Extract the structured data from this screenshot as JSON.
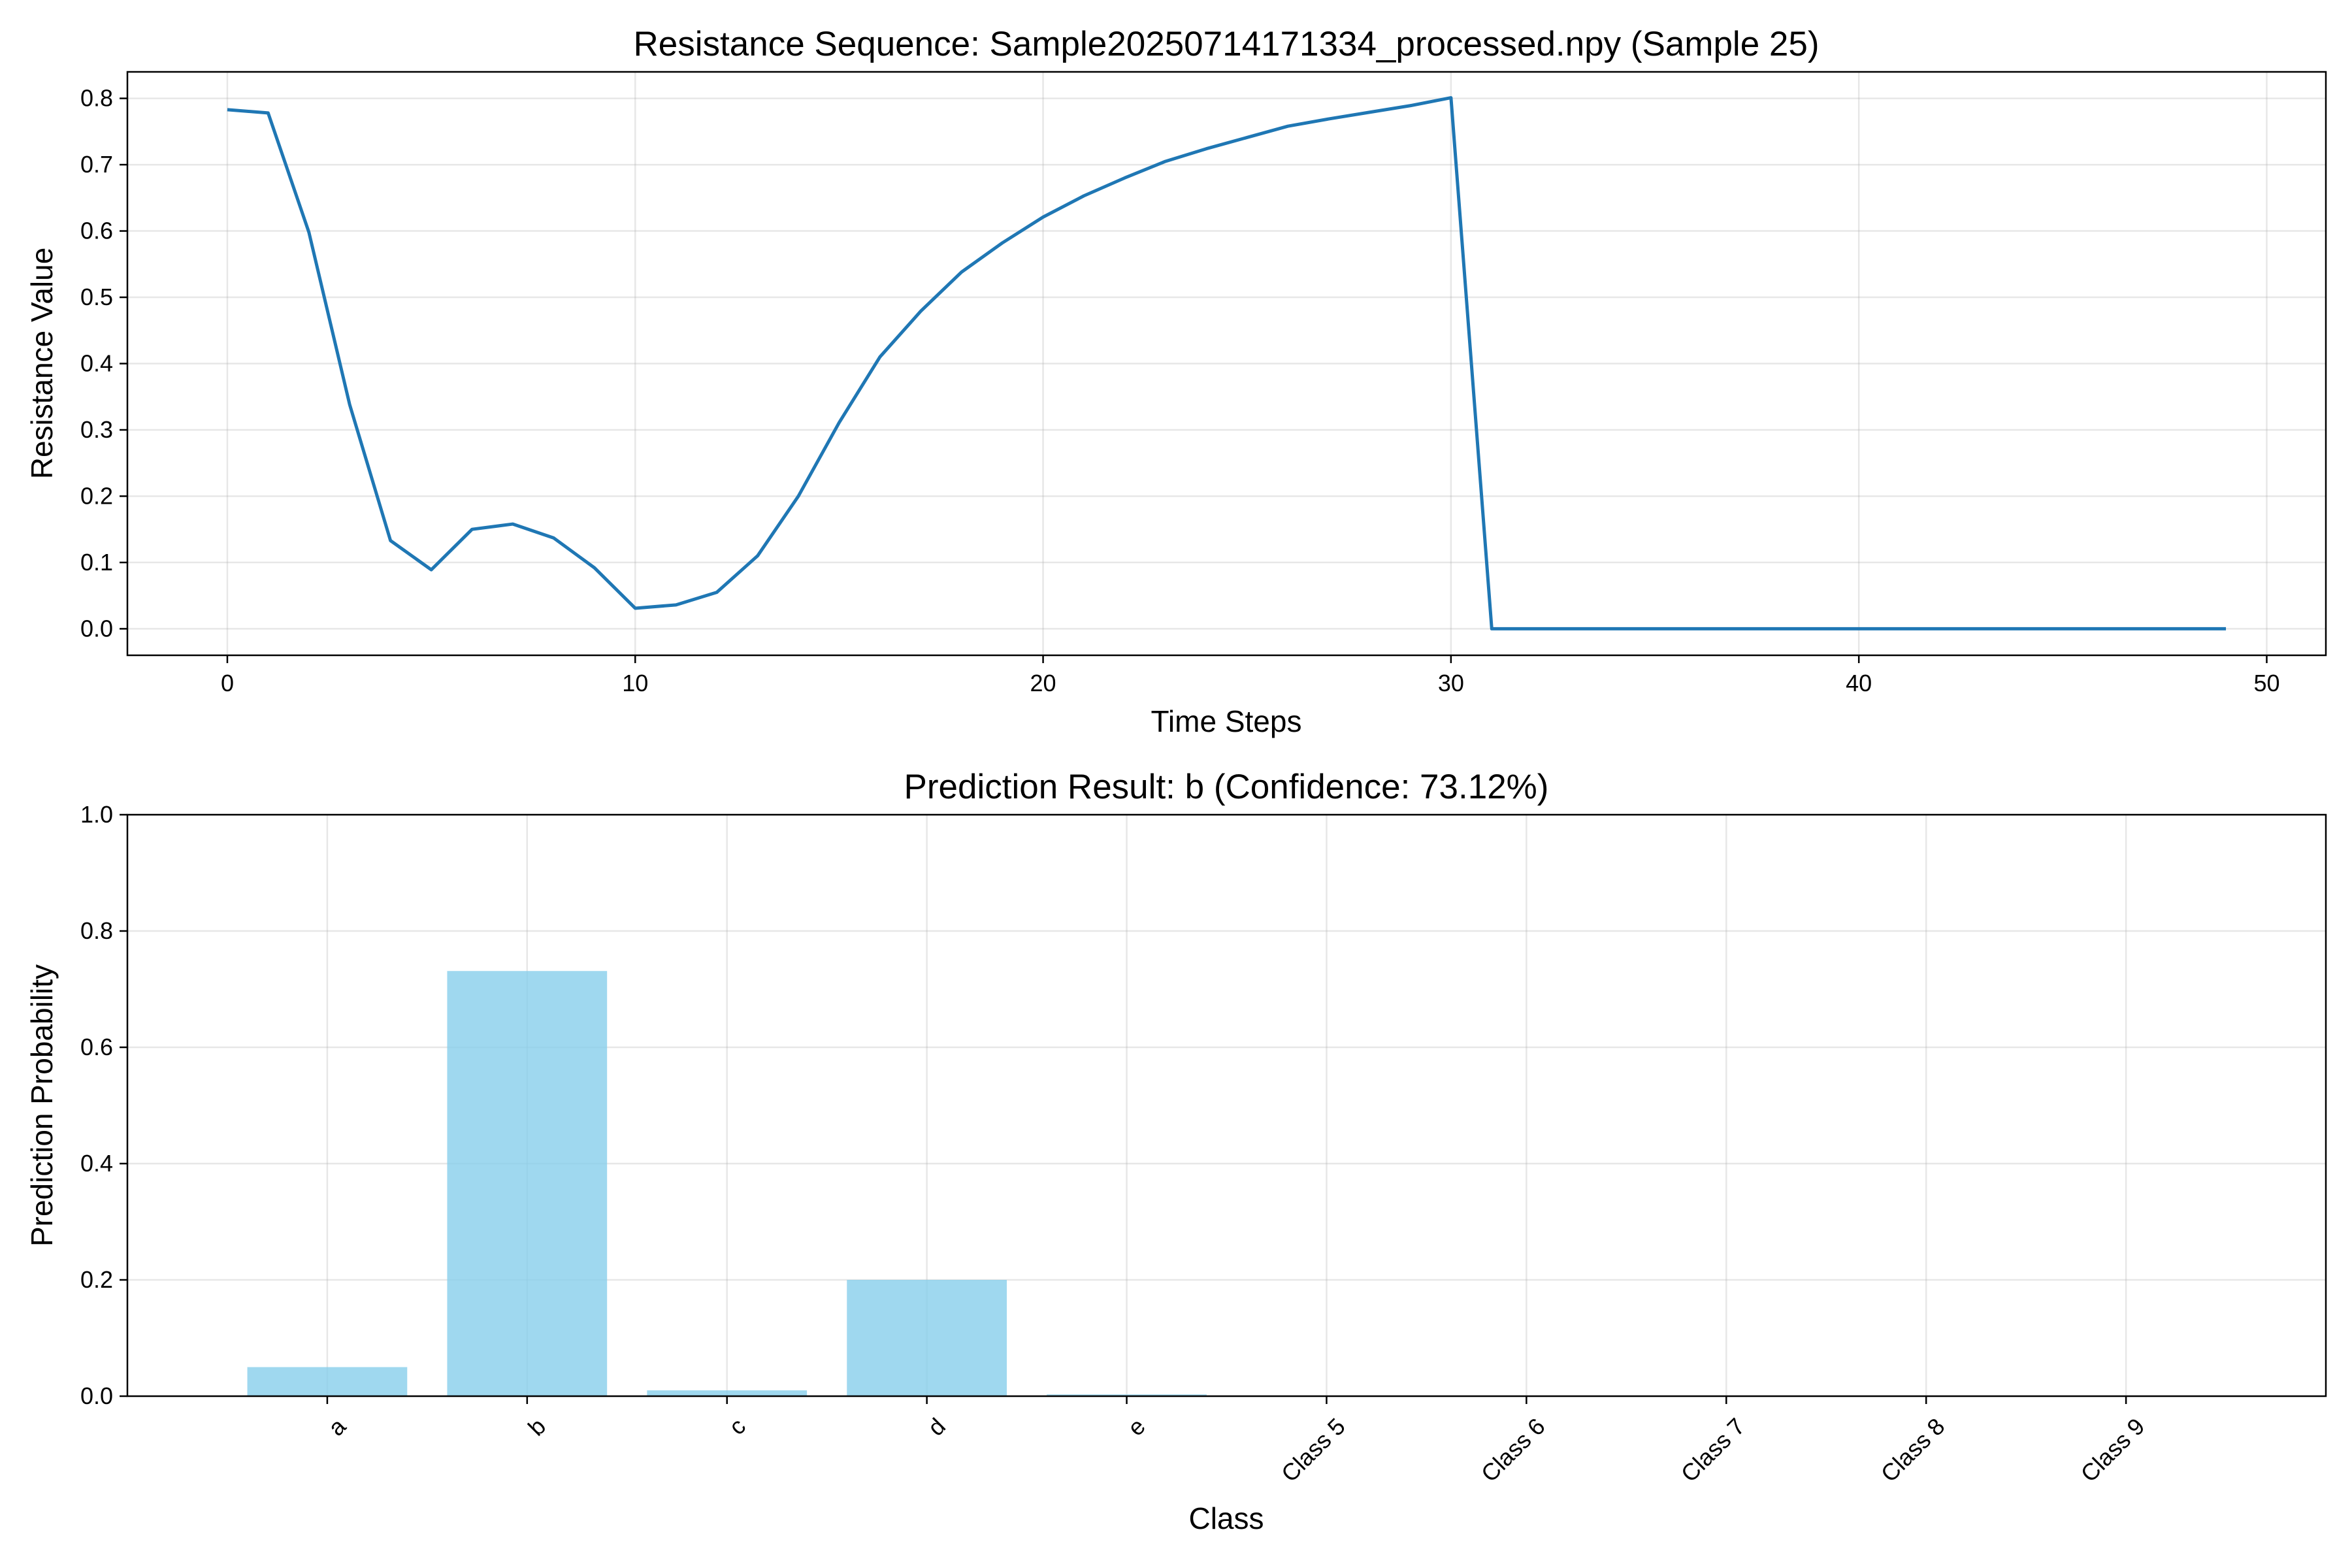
{
  "chart_data": [
    {
      "type": "line",
      "title": "Resistance Sequence: Sample20250714171334_processed.npy (Sample 25)",
      "xlabel": "Time Steps",
      "ylabel": "Resistance Value",
      "xlim": [
        -2.45,
        51.45
      ],
      "ylim": [
        -0.04,
        0.84
      ],
      "xticks": [
        0,
        10,
        20,
        30,
        40,
        50
      ],
      "xtick_labels": [
        "0",
        "10",
        "20",
        "30",
        "40",
        "50"
      ],
      "yticks": [
        0.0,
        0.1,
        0.2,
        0.3,
        0.4,
        0.5,
        0.6,
        0.7,
        0.8
      ],
      "ytick_labels": [
        "0.0",
        "0.1",
        "0.2",
        "0.3",
        "0.4",
        "0.5",
        "0.6",
        "0.7",
        "0.8"
      ],
      "grid": true,
      "color": "#1f77b4",
      "x": [
        0,
        1,
        2,
        3,
        4,
        5,
        6,
        7,
        8,
        9,
        10,
        11,
        12,
        13,
        14,
        15,
        16,
        17,
        18,
        19,
        20,
        21,
        22,
        23,
        24,
        25,
        26,
        27,
        28,
        29,
        30,
        31,
        32,
        33,
        34,
        35,
        36,
        37,
        38,
        39,
        40,
        41,
        42,
        43,
        44,
        45,
        46,
        47,
        48,
        49
      ],
      "y": [
        0.783,
        0.778,
        0.598,
        0.338,
        0.133,
        0.089,
        0.15,
        0.158,
        0.137,
        0.092,
        0.031,
        0.036,
        0.055,
        0.11,
        0.2,
        0.311,
        0.41,
        0.479,
        0.538,
        0.582,
        0.621,
        0.653,
        0.68,
        0.705,
        0.724,
        0.741,
        0.758,
        0.769,
        0.779,
        0.789,
        0.801,
        0.0,
        0.0,
        0.0,
        0.0,
        0.0,
        0.0,
        0.0,
        0.0,
        0.0,
        0.0,
        0.0,
        0.0,
        0.0,
        0.0,
        0.0,
        0.0,
        0.0,
        0.0,
        0.0
      ]
    },
    {
      "type": "bar",
      "title": "Prediction Result: b (Confidence: 73.12%)",
      "xlabel": "Class",
      "ylabel": "Prediction Probability",
      "ylim": [
        0,
        1.0
      ],
      "yticks": [
        0.0,
        0.2,
        0.4,
        0.6,
        0.8,
        1.0
      ],
      "ytick_labels": [
        "0.0",
        "0.2",
        "0.4",
        "0.6",
        "0.8",
        "1.0"
      ],
      "grid": true,
      "color": "#87ceeb",
      "categories": [
        "a",
        "b",
        "c",
        "d",
        "e",
        "Class 5",
        "Class 6",
        "Class 7",
        "Class 8",
        "Class 9"
      ],
      "values": [
        0.05,
        0.7312,
        0.01,
        0.2,
        0.003,
        0.0,
        0.0,
        0.0,
        0.0,
        0.0
      ]
    }
  ]
}
